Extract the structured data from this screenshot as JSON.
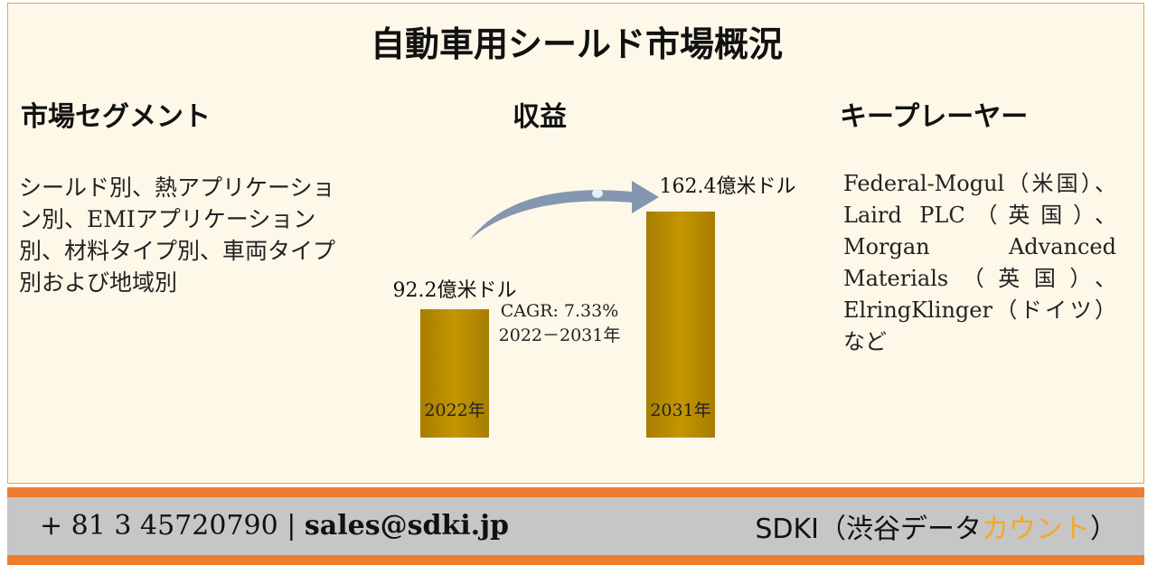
{
  "title": "自動車用シールド市場概況",
  "segments": {
    "heading": "市場セグメント",
    "text": "シールド別、熱アプリケーション別、EMIアプリケーション別、材料タイプ別、車両タイプ別および地域別"
  },
  "revenue": {
    "heading": "収益",
    "cagr_line1": "CAGR: 7.33%",
    "cagr_line2": "2022－2031年"
  },
  "key_players": {
    "heading": "キープレーヤー",
    "text": "Federal-Mogul（米国）、Laird PLC（英国）、Morgan Advanced Materials（英国）、ElringKlinger（ドイツ）など"
  },
  "chart_data": {
    "type": "bar",
    "categories": [
      "2022年",
      "2031年"
    ],
    "values": [
      92.2,
      162.4
    ],
    "value_labels": [
      "92.2億米ドル",
      "162.4億米ドル"
    ],
    "bar_color": "#bf9000",
    "arrow_color": "#8497b0"
  },
  "footer": {
    "phone": "+ 81 3 45720790",
    "separator": "|",
    "email": "sales@sdki.jp",
    "brand_prefix": "SDKI（渋谷データ",
    "brand_accent": "カウント",
    "brand_suffix": "）",
    "accent_color": "#f4a82a"
  }
}
